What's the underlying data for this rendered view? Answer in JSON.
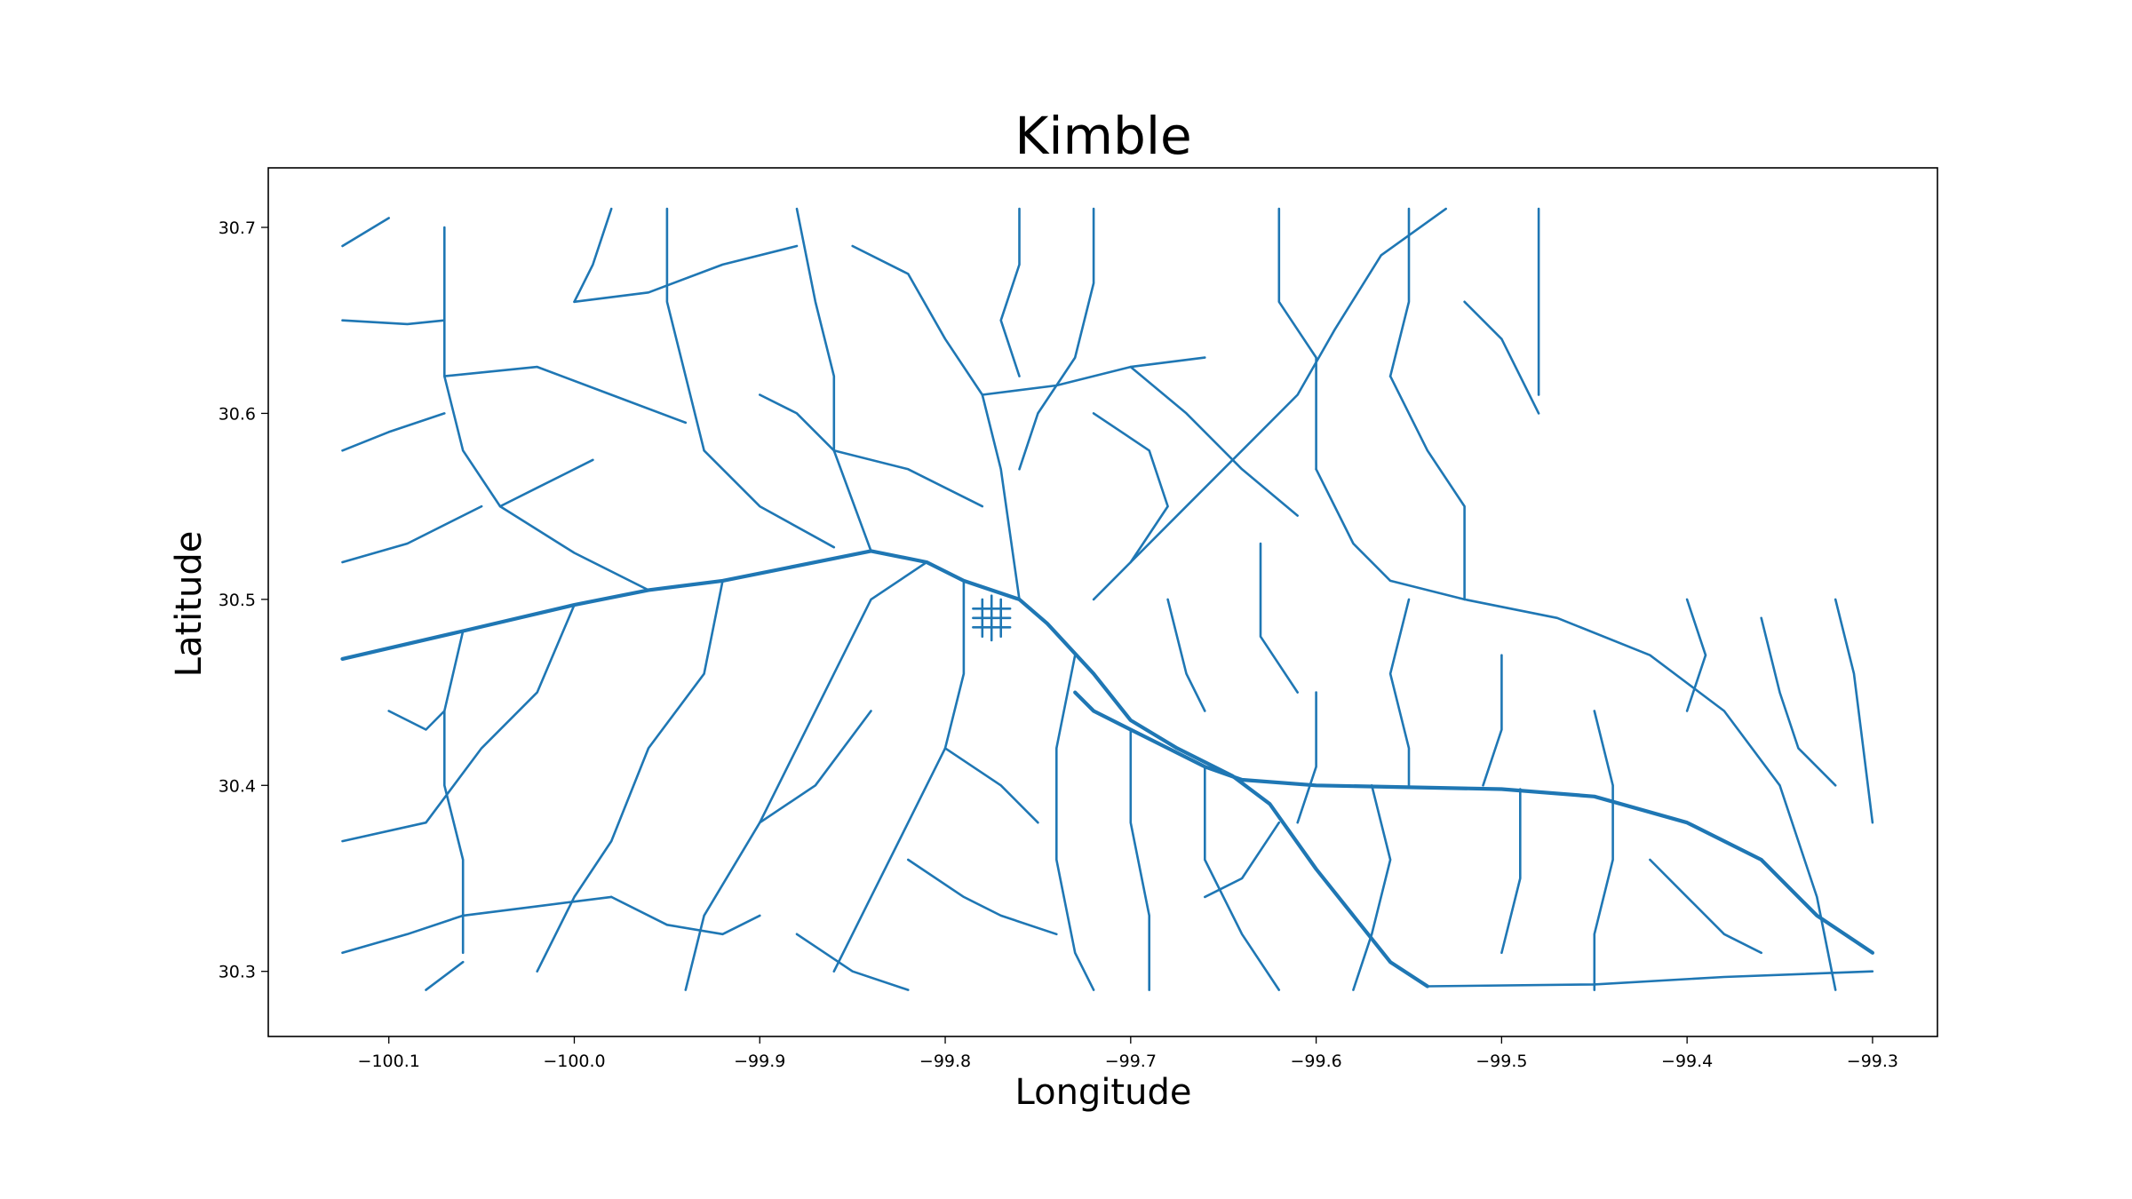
{
  "chart_data": {
    "type": "map",
    "title": "Kimble",
    "xlabel": "Longitude",
    "ylabel": "Latitude",
    "xlim": [
      -100.165,
      -99.265
    ],
    "ylim": [
      30.265,
      30.732
    ],
    "x_ticks": [
      {
        "value": -100.1,
        "label": "−100.1"
      },
      {
        "value": -100.0,
        "label": "−100.0"
      },
      {
        "value": -99.9,
        "label": "−99.9"
      },
      {
        "value": -99.8,
        "label": "−99.8"
      },
      {
        "value": -99.7,
        "label": "−99.7"
      },
      {
        "value": -99.6,
        "label": "−99.6"
      },
      {
        "value": -99.5,
        "label": "−99.5"
      },
      {
        "value": -99.4,
        "label": "−99.4"
      },
      {
        "value": -99.3,
        "label": "−99.3"
      }
    ],
    "y_ticks": [
      {
        "value": 30.3,
        "label": "30.3"
      },
      {
        "value": 30.4,
        "label": "30.4"
      },
      {
        "value": 30.5,
        "label": "30.5"
      },
      {
        "value": 30.6,
        "label": "30.6"
      },
      {
        "value": 30.7,
        "label": "30.7"
      }
    ],
    "grid": false,
    "line_color": "#1f77b4",
    "highways": [
      [
        [
          -100.125,
          30.468
        ],
        [
          -100.06,
          30.483
        ],
        [
          -100.0,
          30.497
        ],
        [
          -99.96,
          30.505
        ],
        [
          -99.92,
          30.51
        ],
        [
          -99.88,
          30.518
        ],
        [
          -99.84,
          30.526
        ],
        [
          -99.81,
          30.52
        ],
        [
          -99.79,
          30.51
        ],
        [
          -99.76,
          30.5
        ],
        [
          -99.745,
          30.487
        ],
        [
          -99.72,
          30.46
        ],
        [
          -99.7,
          30.435
        ],
        [
          -99.675,
          30.42
        ],
        [
          -99.645,
          30.405
        ],
        [
          -99.625,
          30.39
        ],
        [
          -99.6,
          30.355
        ],
        [
          -99.58,
          30.33
        ],
        [
          -99.56,
          30.305
        ],
        [
          -99.54,
          30.292
        ]
      ],
      [
        [
          -99.73,
          30.45
        ],
        [
          -99.72,
          30.44
        ],
        [
          -99.7,
          30.43
        ],
        [
          -99.68,
          30.42
        ],
        [
          -99.66,
          30.41
        ],
        [
          -99.64,
          30.403
        ],
        [
          -99.6,
          30.4
        ],
        [
          -99.5,
          30.398
        ],
        [
          -99.45,
          30.394
        ],
        [
          -99.4,
          30.38
        ],
        [
          -99.36,
          30.36
        ],
        [
          -99.33,
          30.33
        ],
        [
          -99.3,
          30.31
        ]
      ]
    ],
    "roads": [
      [
        [
          -100.07,
          30.7
        ],
        [
          -100.07,
          30.62
        ],
        [
          -100.06,
          30.58
        ],
        [
          -100.04,
          30.55
        ],
        [
          -100.0,
          30.525
        ],
        [
          -99.96,
          30.505
        ]
      ],
      [
        [
          -100.125,
          30.65
        ],
        [
          -100.09,
          30.648
        ],
        [
          -100.07,
          30.65
        ]
      ],
      [
        [
          -100.07,
          30.62
        ],
        [
          -100.02,
          30.625
        ],
        [
          -99.98,
          30.61
        ],
        [
          -99.94,
          30.595
        ]
      ],
      [
        [
          -100.04,
          30.55
        ],
        [
          -100.02,
          30.56
        ],
        [
          -99.99,
          30.575
        ]
      ],
      [
        [
          -99.95,
          30.71
        ],
        [
          -99.95,
          30.66
        ],
        [
          -99.94,
          30.62
        ],
        [
          -99.93,
          30.58
        ],
        [
          -99.9,
          30.55
        ],
        [
          -99.86,
          30.528
        ]
      ],
      [
        [
          -100.125,
          30.69
        ],
        [
          -100.1,
          30.705
        ]
      ],
      [
        [
          -100.0,
          30.66
        ],
        [
          -99.96,
          30.665
        ],
        [
          -99.92,
          30.68
        ],
        [
          -99.88,
          30.69
        ]
      ],
      [
        [
          -99.88,
          30.71
        ],
        [
          -99.87,
          30.66
        ],
        [
          -99.86,
          30.62
        ],
        [
          -99.86,
          30.58
        ],
        [
          -99.84,
          30.526
        ]
      ],
      [
        [
          -99.85,
          30.69
        ],
        [
          -99.82,
          30.675
        ],
        [
          -99.8,
          30.64
        ],
        [
          -99.78,
          30.61
        ],
        [
          -99.77,
          30.57
        ],
        [
          -99.76,
          30.5
        ]
      ],
      [
        [
          -99.76,
          30.71
        ],
        [
          -99.76,
          30.68
        ],
        [
          -99.77,
          30.65
        ],
        [
          -99.76,
          30.62
        ]
      ],
      [
        [
          -99.72,
          30.71
        ],
        [
          -99.72,
          30.67
        ],
        [
          -99.73,
          30.63
        ],
        [
          -99.75,
          30.6
        ],
        [
          -99.76,
          30.57
        ]
      ],
      [
        [
          -99.78,
          30.61
        ],
        [
          -99.74,
          30.615
        ],
        [
          -99.7,
          30.625
        ],
        [
          -99.66,
          30.63
        ]
      ],
      [
        [
          -99.7,
          30.625
        ],
        [
          -99.67,
          30.6
        ],
        [
          -99.64,
          30.57
        ],
        [
          -99.61,
          30.545
        ]
      ],
      [
        [
          -99.62,
          30.71
        ],
        [
          -99.62,
          30.66
        ],
        [
          -99.6,
          30.63
        ],
        [
          -99.6,
          30.57
        ]
      ],
      [
        [
          -99.55,
          30.71
        ],
        [
          -99.55,
          30.66
        ],
        [
          -99.56,
          30.62
        ]
      ],
      [
        [
          -99.48,
          30.71
        ],
        [
          -99.48,
          30.66
        ],
        [
          -99.48,
          30.61
        ]
      ],
      [
        [
          -99.53,
          30.71
        ],
        [
          -99.565,
          30.685
        ],
        [
          -99.59,
          30.645
        ],
        [
          -99.61,
          30.61
        ],
        [
          -99.64,
          30.58
        ],
        [
          -99.67,
          30.55
        ],
        [
          -99.7,
          30.52
        ],
        [
          -99.72,
          30.5
        ]
      ],
      [
        [
          -99.6,
          30.57
        ],
        [
          -99.58,
          30.53
        ],
        [
          -99.56,
          30.51
        ],
        [
          -99.52,
          30.5
        ],
        [
          -99.47,
          30.49
        ],
        [
          -99.42,
          30.47
        ],
        [
          -99.38,
          30.44
        ],
        [
          -99.35,
          30.4
        ],
        [
          -99.33,
          30.34
        ],
        [
          -99.32,
          30.29
        ]
      ],
      [
        [
          -99.32,
          30.5
        ],
        [
          -99.31,
          30.46
        ],
        [
          -99.305,
          30.42
        ],
        [
          -99.3,
          30.38
        ]
      ],
      [
        [
          -99.4,
          30.5
        ],
        [
          -99.39,
          30.47
        ],
        [
          -99.4,
          30.44
        ]
      ],
      [
        [
          -99.45,
          30.44
        ],
        [
          -99.44,
          30.4
        ],
        [
          -99.44,
          30.36
        ],
        [
          -99.45,
          30.32
        ],
        [
          -99.45,
          30.29
        ]
      ],
      [
        [
          -99.5,
          30.47
        ],
        [
          -99.5,
          30.43
        ],
        [
          -99.51,
          30.4
        ]
      ],
      [
        [
          -99.55,
          30.5
        ],
        [
          -99.56,
          30.46
        ],
        [
          -99.55,
          30.42
        ],
        [
          -99.55,
          30.4
        ]
      ],
      [
        [
          -99.57,
          30.4
        ],
        [
          -99.56,
          30.36
        ],
        [
          -99.57,
          30.32
        ],
        [
          -99.58,
          30.29
        ]
      ],
      [
        [
          -99.49,
          30.398
        ],
        [
          -99.49,
          30.35
        ],
        [
          -99.5,
          30.31
        ]
      ],
      [
        [
          -99.54,
          30.292
        ],
        [
          -99.45,
          30.293
        ],
        [
          -99.38,
          30.297
        ],
        [
          -99.3,
          30.3
        ]
      ],
      [
        [
          -99.63,
          30.53
        ],
        [
          -99.63,
          30.48
        ],
        [
          -99.61,
          30.45
        ]
      ],
      [
        [
          -99.68,
          30.5
        ],
        [
          -99.67,
          30.46
        ],
        [
          -99.66,
          30.44
        ]
      ],
      [
        [
          -99.7,
          30.43
        ],
        [
          -99.7,
          30.38
        ],
        [
          -99.69,
          30.33
        ],
        [
          -99.69,
          30.29
        ]
      ],
      [
        [
          -99.73,
          30.47
        ],
        [
          -99.74,
          30.42
        ],
        [
          -99.74,
          30.36
        ],
        [
          -99.73,
          30.31
        ],
        [
          -99.72,
          30.29
        ]
      ],
      [
        [
          -99.66,
          30.41
        ],
        [
          -99.66,
          30.36
        ],
        [
          -99.64,
          30.32
        ],
        [
          -99.62,
          30.29
        ]
      ],
      [
        [
          -99.62,
          30.38
        ],
        [
          -99.64,
          30.35
        ],
        [
          -99.66,
          30.34
        ]
      ],
      [
        [
          -99.79,
          30.51
        ],
        [
          -99.79,
          30.46
        ],
        [
          -99.8,
          30.42
        ],
        [
          -99.82,
          30.38
        ],
        [
          -99.84,
          30.34
        ],
        [
          -99.86,
          30.3
        ]
      ],
      [
        [
          -99.81,
          30.52
        ],
        [
          -99.84,
          30.5
        ],
        [
          -99.86,
          30.46
        ],
        [
          -99.88,
          30.42
        ],
        [
          -99.9,
          30.38
        ],
        [
          -99.93,
          30.33
        ],
        [
          -99.94,
          30.29
        ]
      ],
      [
        [
          -99.84,
          30.44
        ],
        [
          -99.87,
          30.4
        ],
        [
          -99.9,
          30.38
        ]
      ],
      [
        [
          -99.8,
          30.42
        ],
        [
          -99.77,
          30.4
        ],
        [
          -99.75,
          30.38
        ]
      ],
      [
        [
          -99.82,
          30.36
        ],
        [
          -99.79,
          30.34
        ],
        [
          -99.77,
          30.33
        ],
        [
          -99.74,
          30.32
        ]
      ],
      [
        [
          -99.88,
          30.32
        ],
        [
          -99.85,
          30.3
        ],
        [
          -99.82,
          30.29
        ]
      ],
      [
        [
          -99.92,
          30.51
        ],
        [
          -99.93,
          30.46
        ],
        [
          -99.96,
          30.42
        ],
        [
          -99.98,
          30.37
        ],
        [
          -100.0,
          30.34
        ],
        [
          -100.02,
          30.3
        ]
      ],
      [
        [
          -100.0,
          30.497
        ],
        [
          -100.02,
          30.45
        ],
        [
          -100.05,
          30.42
        ],
        [
          -100.08,
          30.38
        ],
        [
          -100.125,
          30.37
        ]
      ],
      [
        [
          -100.06,
          30.483
        ],
        [
          -100.07,
          30.44
        ],
        [
          -100.07,
          30.4
        ],
        [
          -100.06,
          30.36
        ],
        [
          -100.06,
          30.31
        ]
      ],
      [
        [
          -100.125,
          30.31
        ],
        [
          -100.09,
          30.32
        ],
        [
          -100.06,
          30.33
        ],
        [
          -100.02,
          30.335
        ],
        [
          -99.98,
          30.34
        ]
      ],
      [
        [
          -100.125,
          30.52
        ],
        [
          -100.09,
          30.53
        ],
        [
          -100.05,
          30.55
        ]
      ],
      [
        [
          -100.125,
          30.58
        ],
        [
          -100.1,
          30.59
        ],
        [
          -100.07,
          30.6
        ]
      ],
      [
        [
          -100.08,
          30.29
        ],
        [
          -100.06,
          30.305
        ]
      ],
      [
        [
          -99.98,
          30.34
        ],
        [
          -99.95,
          30.325
        ],
        [
          -99.92,
          30.32
        ],
        [
          -99.9,
          30.33
        ]
      ],
      [
        [
          -99.86,
          30.58
        ],
        [
          -99.82,
          30.57
        ],
        [
          -99.8,
          30.56
        ],
        [
          -99.78,
          30.55
        ]
      ],
      [
        [
          -99.72,
          30.6
        ],
        [
          -99.69,
          30.58
        ],
        [
          -99.68,
          30.55
        ],
        [
          -99.7,
          30.52
        ]
      ],
      [
        [
          -99.52,
          30.66
        ],
        [
          -99.5,
          30.64
        ],
        [
          -99.48,
          30.6
        ]
      ],
      [
        [
          -99.56,
          30.62
        ],
        [
          -99.54,
          30.58
        ],
        [
          -99.52,
          30.55
        ],
        [
          -99.52,
          30.5
        ]
      ],
      [
        [
          -99.6,
          30.45
        ],
        [
          -99.6,
          30.41
        ],
        [
          -99.61,
          30.38
        ]
      ],
      [
        [
          -99.36,
          30.49
        ],
        [
          -99.35,
          30.45
        ],
        [
          -99.34,
          30.42
        ],
        [
          -99.32,
          30.4
        ]
      ],
      [
        [
          -99.42,
          30.36
        ],
        [
          -99.4,
          30.34
        ],
        [
          -99.38,
          30.32
        ],
        [
          -99.36,
          30.31
        ]
      ],
      [
        [
          -99.9,
          30.61
        ],
        [
          -99.88,
          30.6
        ],
        [
          -99.86,
          30.58
        ]
      ],
      [
        [
          -99.98,
          30.71
        ],
        [
          -99.99,
          30.68
        ],
        [
          -100.0,
          30.66
        ]
      ],
      [
        [
          -100.1,
          30.44
        ],
        [
          -100.08,
          30.43
        ],
        [
          -100.07,
          30.44
        ]
      ]
    ],
    "town_roads": [
      [
        [
          -99.785,
          30.49
        ],
        [
          -99.765,
          30.49
        ]
      ],
      [
        [
          -99.785,
          30.485
        ],
        [
          -99.765,
          30.485
        ]
      ],
      [
        [
          -99.785,
          30.495
        ],
        [
          -99.765,
          30.495
        ]
      ],
      [
        [
          -99.78,
          30.48
        ],
        [
          -99.78,
          30.5
        ]
      ],
      [
        [
          -99.775,
          30.478
        ],
        [
          -99.775,
          30.502
        ]
      ],
      [
        [
          -99.77,
          30.48
        ],
        [
          -99.77,
          30.5
        ]
      ]
    ]
  }
}
